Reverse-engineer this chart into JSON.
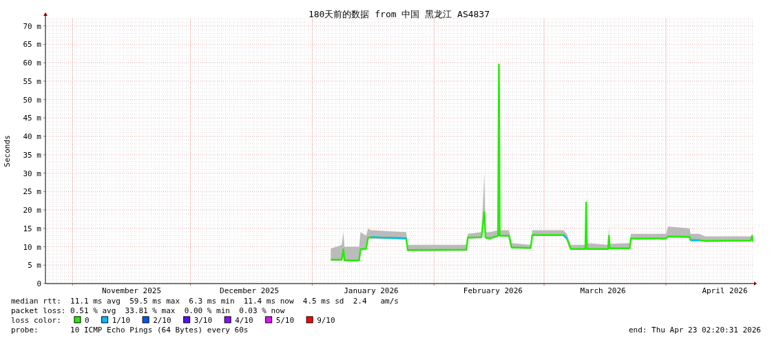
{
  "chart_data": {
    "type": "line",
    "title": "180天前的数据 from 中国 黑龙江 AS4837",
    "ylabel": "Seconds",
    "xlim": [
      "2025-10-25T02:20",
      "2026-04-23T02:20"
    ],
    "xticks": [
      {
        "value": "2025-11-01",
        "label": null
      },
      {
        "value": "2025-11-16",
        "label": "November 2025"
      },
      {
        "value": "2025-12-01",
        "label": null
      },
      {
        "value": "2025-12-16",
        "label": "December 2025"
      },
      {
        "value": "2026-01-01",
        "label": null
      },
      {
        "value": "2026-01-16",
        "label": "January 2026"
      },
      {
        "value": "2026-02-01",
        "label": null
      },
      {
        "value": "2026-02-16",
        "label": "February 2026"
      },
      {
        "value": "2026-03-01",
        "label": null
      },
      {
        "value": "2026-03-16",
        "label": "March 2026"
      },
      {
        "value": "2026-04-01",
        "label": null
      },
      {
        "value": "2026-04-16",
        "label": "April 2026"
      }
    ],
    "ylim": [
      0,
      72
    ],
    "yticks": [
      0,
      {
        "value": 5,
        "label": "5 m"
      },
      {
        "value": 10,
        "label": "10 m"
      },
      {
        "value": 15,
        "label": "15 m"
      },
      {
        "value": 20,
        "label": "20 m"
      },
      {
        "value": 25,
        "label": "25 m"
      },
      {
        "value": 30,
        "label": "30 m"
      },
      {
        "value": 35,
        "label": "35 m"
      },
      {
        "value": 40,
        "label": "40 m"
      },
      {
        "value": 45,
        "label": "45 m"
      },
      {
        "value": 50,
        "label": "50 m"
      },
      {
        "value": 55,
        "label": "55 m"
      },
      {
        "value": 60,
        "label": "60 m"
      },
      {
        "value": 65,
        "label": "65 m"
      },
      {
        "value": 70,
        "label": "70 m"
      }
    ],
    "grid": true,
    "legend": "bottom",
    "legend_title": "loss color:",
    "x": [
      "2026-01-05T17:00",
      "2026-01-08T12:00",
      "2026-01-08T22:00",
      "2026-01-09T05:00",
      "2026-01-12T22:00",
      "2026-01-13T07:00",
      "2026-01-14T17:00",
      "2026-01-15T05:00",
      "2026-01-15T22:00",
      "2026-01-24T22:00",
      "2026-01-25T07:00",
      "2026-02-09T05:00",
      "2026-02-09T14:00",
      "2026-02-13T02:00",
      "2026-02-13T19:00",
      "2026-02-14T02:00",
      "2026-02-15T05:00",
      "2026-02-17T07:00",
      "2026-02-17T12:00",
      "2026-02-17T17:00",
      "2026-02-20T02:00",
      "2026-02-20T17:00",
      "2026-02-25T14:00",
      "2026-02-26T00:00",
      "2026-03-05T22:00",
      "2026-03-06T19:00",
      "2026-03-07T19:00",
      "2026-03-11T12:00",
      "2026-03-11T17:00",
      "2026-03-11T22:00",
      "2026-03-17T07:00",
      "2026-03-17T12:00",
      "2026-03-17T17:00",
      "2026-03-22T19:00",
      "2026-03-23T02:00",
      "2026-04-01T02:00",
      "2026-04-01T12:00",
      "2026-04-07T00:00",
      "2026-04-07T07:00",
      "2026-04-09T12:00",
      "2026-04-11T00:00",
      "2026-04-22T14:00",
      "2026-04-23T00:00",
      "2026-04-23T02:00"
    ],
    "series": [
      {
        "name": "0",
        "color": "#22ee00",
        "values": [
          6.5,
          6.5,
          9.3,
          6.3,
          6.3,
          9.3,
          9.5,
          12.5,
          12.6,
          12.3,
          9.1,
          9.2,
          12.5,
          12.6,
          19.5,
          12.5,
          12.3,
          13,
          59.5,
          13,
          13,
          9.8,
          9.7,
          13.2,
          13.2,
          12.2,
          9.4,
          9.4,
          22,
          9.4,
          9.4,
          13,
          9.6,
          9.6,
          12.2,
          12.3,
          12.8,
          12.7,
          11.8,
          11.8,
          11.6,
          11.7,
          12.9,
          11.4
        ],
        "lower": [
          6.2,
          6.2,
          9,
          6,
          6,
          9,
          9.2,
          12.2,
          12.2,
          12,
          8.8,
          8.9,
          12.2,
          12.3,
          19,
          12.2,
          12,
          12.7,
          59,
          12.7,
          12.7,
          9.5,
          9.4,
          12.9,
          12.9,
          11.9,
          9.1,
          9.1,
          21.5,
          9.1,
          9.1,
          12.7,
          9.3,
          9.3,
          11.9,
          12,
          12.5,
          12.4,
          11.5,
          11.5,
          11.3,
          11.4,
          12.6,
          11.1
        ],
        "upper": [
          9.5,
          10.5,
          14,
          10,
          10,
          14,
          13,
          15,
          14.5,
          14,
          10.5,
          10.5,
          13.5,
          14,
          30,
          14,
          14,
          14.5,
          60,
          14.5,
          14.5,
          11,
          10.5,
          14.5,
          14.5,
          13.5,
          10.5,
          10.5,
          22.5,
          11,
          10.5,
          15.5,
          10.8,
          11,
          13.5,
          13.5,
          15.5,
          15,
          13.5,
          13.5,
          12.8,
          12.8,
          13.5,
          12
        ]
      },
      {
        "name": "1/10",
        "color": "#00bbff",
        "values": [
          null,
          null,
          null,
          null,
          null,
          null,
          null,
          null,
          12.6,
          12.3,
          null,
          null,
          null,
          null,
          null,
          null,
          null,
          null,
          null,
          null,
          null,
          null,
          null,
          null,
          13.2,
          12.2,
          null,
          null,
          null,
          null,
          null,
          null,
          null,
          null,
          null,
          null,
          null,
          null,
          11.8,
          11.8,
          null,
          null,
          null,
          null
        ]
      },
      {
        "name": "2/10",
        "color": "#0055ff",
        "values": [
          null,
          null,
          null,
          null,
          null,
          null,
          null,
          null,
          null,
          null,
          null,
          null,
          null,
          null,
          null,
          null,
          null,
          null,
          null,
          null,
          null,
          null,
          null,
          null,
          null,
          null,
          null,
          null,
          null,
          null,
          null,
          null,
          null,
          null,
          null,
          null,
          null,
          null,
          null,
          null,
          null,
          null,
          null,
          null
        ]
      },
      {
        "name": "3/10",
        "color": "#5511ff",
        "values": [
          null,
          null,
          null,
          null,
          null,
          null,
          null,
          null,
          null,
          null,
          null,
          null,
          null,
          null,
          null,
          null,
          null,
          null,
          null,
          null,
          null,
          null,
          null,
          null,
          null,
          null,
          null,
          null,
          null,
          null,
          null,
          null,
          null,
          null,
          null,
          null,
          null,
          null,
          null,
          null,
          null,
          null,
          null,
          null
        ]
      },
      {
        "name": "4/10",
        "color": "#8811ff",
        "values": [
          null,
          null,
          null,
          null,
          null,
          null,
          null,
          null,
          null,
          null,
          null,
          null,
          null,
          null,
          null,
          null,
          null,
          null,
          null,
          null,
          null,
          null,
          null,
          null,
          null,
          null,
          null,
          null,
          null,
          null,
          null,
          null,
          null,
          null,
          null,
          null,
          null,
          null,
          null,
          null,
          null,
          null,
          null,
          null
        ]
      },
      {
        "name": "5/10",
        "color": "#dd11ff",
        "values": [
          null,
          null,
          null,
          null,
          null,
          null,
          null,
          null,
          null,
          null,
          null,
          null,
          null,
          null,
          null,
          null,
          null,
          null,
          null,
          null,
          null,
          null,
          null,
          null,
          null,
          null,
          null,
          null,
          null,
          null,
          null,
          null,
          null,
          null,
          null,
          null,
          null,
          null,
          null,
          null,
          null,
          null,
          null,
          null
        ]
      },
      {
        "name": "9/10",
        "color": "#ff0000",
        "values": [
          null,
          null,
          null,
          null,
          null,
          null,
          null,
          null,
          null,
          null,
          null,
          null,
          null,
          null,
          null,
          null,
          null,
          null,
          null,
          null,
          null,
          null,
          null,
          null,
          null,
          null,
          null,
          null,
          null,
          null,
          null,
          null,
          null,
          null,
          null,
          null,
          null,
          null,
          null,
          null,
          null,
          null,
          null,
          null
        ]
      }
    ],
    "annotations": [
      "median rtt:  11.1 ms avg  59.5 ms max  6.3 ms min  11.4 ms now  4.5 ms sd  2.4   am/s",
      "packet loss: 0.51 % avg  33.81 % max  0.00 % min  0.03 % now",
      "probe:       10 ICMP Echo Pings (64 Bytes) every 60s",
      "end: Thu Apr 23 02:20:31 2026"
    ]
  }
}
